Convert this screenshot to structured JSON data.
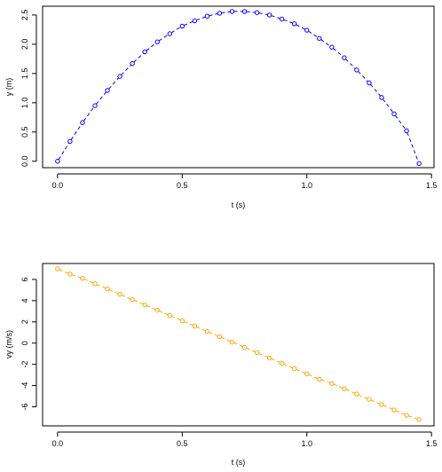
{
  "chart_data": [
    {
      "type": "line",
      "xlabel": "t (s)",
      "ylabel": "y (m)",
      "xlim": [
        -0.06,
        1.51
      ],
      "ylim": [
        -0.11,
        2.65
      ],
      "xticks": [
        0.0,
        0.5,
        1.0,
        1.5
      ],
      "xtick_labels": [
        "0.0",
        "0.5",
        "1.0",
        "1.5"
      ],
      "yticks": [
        0.0,
        0.5,
        1.0,
        1.5,
        2.0,
        2.5
      ],
      "ytick_labels": [
        "0.0",
        "0.5",
        "1.0",
        "1.5",
        "2.0",
        "2.5"
      ],
      "grid": false,
      "line_style": "dashed",
      "marker": "open-circle",
      "color": "#0000ff",
      "series": [
        {
          "x": [
            0.0,
            0.05,
            0.1,
            0.15,
            0.2,
            0.25,
            0.3,
            0.35,
            0.4,
            0.45,
            0.5,
            0.55,
            0.6,
            0.65,
            0.7,
            0.75,
            0.8,
            0.85,
            0.9,
            0.95,
            1.0,
            1.05,
            1.1,
            1.15,
            1.2,
            1.25,
            1.3,
            1.35,
            1.4,
            1.45
          ],
          "y": [
            0.0,
            0.34,
            0.66,
            0.95,
            1.21,
            1.45,
            1.67,
            1.87,
            2.04,
            2.18,
            2.31,
            2.4,
            2.48,
            2.53,
            2.56,
            2.56,
            2.54,
            2.5,
            2.43,
            2.35,
            2.24,
            2.1,
            1.95,
            1.77,
            1.56,
            1.34,
            1.09,
            0.81,
            0.52,
            -0.04
          ]
        }
      ]
    },
    {
      "type": "line",
      "xlabel": "t (s)",
      "ylabel": "vy (m/s)",
      "xlim": [
        -0.06,
        1.51
      ],
      "ylim": [
        -7.8,
        7.5
      ],
      "xticks": [
        0.0,
        0.5,
        1.0,
        1.5
      ],
      "xtick_labels": [
        "0.0",
        "0.5",
        "1.0",
        "1.5"
      ],
      "yticks": [
        -6,
        -4,
        -2,
        0,
        2,
        4,
        6
      ],
      "ytick_labels": [
        "-6",
        "-4",
        "-2",
        "0",
        "2",
        "4",
        "6"
      ],
      "grid": false,
      "line_style": "dashed",
      "marker": "open-circle",
      "color": "#ffa500",
      "series": [
        {
          "x": [
            0.0,
            0.05,
            0.1,
            0.15,
            0.2,
            0.25,
            0.3,
            0.35,
            0.4,
            0.45,
            0.5,
            0.55,
            0.6,
            0.65,
            0.7,
            0.75,
            0.8,
            0.85,
            0.9,
            0.95,
            1.0,
            1.05,
            1.1,
            1.15,
            1.2,
            1.25,
            1.3,
            1.35,
            1.4,
            1.45
          ],
          "y": [
            7.0,
            6.5,
            6.1,
            5.6,
            5.1,
            4.6,
            4.1,
            3.6,
            3.1,
            2.6,
            2.1,
            1.6,
            1.1,
            0.6,
            0.1,
            -0.4,
            -0.9,
            -1.4,
            -1.9,
            -2.4,
            -2.9,
            -3.4,
            -3.8,
            -4.3,
            -4.8,
            -5.3,
            -5.8,
            -6.3,
            -6.8,
            -7.2
          ]
        }
      ]
    }
  ]
}
